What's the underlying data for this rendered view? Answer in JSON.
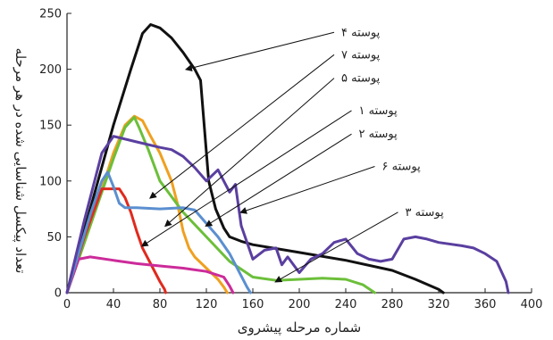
{
  "chart_data": {
    "type": "line",
    "xlabel": "شماره مرحله پیشروی",
    "ylabel": "تعداد پیکسل شناسایی شده در هر مرحله",
    "xlim": [
      0,
      400
    ],
    "ylim": [
      0,
      250
    ],
    "xticks": [
      "0",
      "40",
      "80",
      "120",
      "160",
      "200",
      "240",
      "280",
      "320",
      "360",
      "400"
    ],
    "yticks": [
      "0",
      "50",
      "100",
      "150",
      "200",
      "250"
    ],
    "grid": false,
    "series": [
      {
        "name": "پوسته ۴",
        "color": "#111111",
        "x": [
          0,
          20,
          40,
          55,
          65,
          72,
          80,
          90,
          100,
          110,
          115,
          122,
          128,
          135,
          140,
          150,
          160,
          200,
          240,
          280,
          300,
          320,
          324
        ],
        "y": [
          0,
          75,
          150,
          200,
          232,
          240,
          237,
          228,
          215,
          200,
          190,
          100,
          75,
          58,
          50,
          46,
          43,
          36,
          29,
          20,
          12,
          3,
          0
        ]
      },
      {
        "name": "پوسته ۷",
        "color": "#f0a020",
        "x": [
          0,
          20,
          40,
          50,
          58,
          65,
          72,
          80,
          90,
          95,
          100,
          105,
          110,
          120,
          130,
          135,
          138
        ],
        "y": [
          0,
          60,
          125,
          150,
          158,
          154,
          140,
          125,
          100,
          80,
          55,
          40,
          32,
          22,
          12,
          5,
          0
        ]
      },
      {
        "name": "پوسته ۵",
        "color": "#6cbf3a",
        "x": [
          0,
          20,
          40,
          50,
          58,
          62,
          70,
          80,
          100,
          120,
          140,
          160,
          180,
          200,
          220,
          240,
          255,
          265
        ],
        "y": [
          0,
          60,
          120,
          148,
          157,
          148,
          128,
          100,
          72,
          50,
          28,
          14,
          11,
          12,
          13,
          12,
          7,
          0
        ]
      },
      {
        "name": "پوسته ۱",
        "color": "#e02a1e",
        "x": [
          0,
          15,
          30,
          45,
          50,
          55,
          60,
          65,
          70,
          75,
          80,
          84,
          85
        ],
        "y": [
          0,
          50,
          93,
          93,
          85,
          72,
          55,
          40,
          30,
          20,
          10,
          3,
          0
        ]
      },
      {
        "name": "پوسته ۲",
        "color": "#cc2b9a",
        "x": [
          0,
          10,
          20,
          40,
          60,
          80,
          100,
          120,
          135,
          140,
          143
        ],
        "y": [
          0,
          30,
          32,
          29,
          26,
          24,
          22,
          19,
          14,
          6,
          0
        ]
      },
      {
        "name": "پوسته ۶",
        "color": "#5b8fd0",
        "x": [
          0,
          20,
          30,
          35,
          40,
          45,
          50,
          60,
          80,
          100,
          110,
          120,
          130,
          140,
          150,
          155,
          158
        ],
        "y": [
          0,
          70,
          100,
          108,
          95,
          80,
          76,
          76,
          75,
          76,
          74,
          62,
          50,
          35,
          15,
          5,
          0
        ]
      },
      {
        "name": "پوسته ۳",
        "color": "#5a3fa0",
        "x": [
          0,
          15,
          30,
          40,
          60,
          80,
          90,
          100,
          110,
          120,
          130,
          140,
          145,
          150,
          160,
          170,
          180,
          185,
          190,
          200,
          210,
          220,
          230,
          240,
          250,
          260,
          270,
          280,
          290,
          300,
          310,
          320,
          340,
          350,
          360,
          370,
          378,
          380
        ],
        "y": [
          0,
          65,
          125,
          140,
          135,
          130,
          128,
          122,
          112,
          100,
          110,
          90,
          97,
          60,
          30,
          38,
          40,
          25,
          32,
          18,
          30,
          35,
          45,
          48,
          35,
          30,
          28,
          30,
          48,
          50,
          48,
          45,
          42,
          40,
          35,
          28,
          10,
          0
        ]
      }
    ],
    "annotations": [
      {
        "label": "پوسته ۴",
        "tx": 230,
        "ty": 233,
        "ax": 103,
        "ay": 200
      },
      {
        "label": "پوسته ۷",
        "tx": 230,
        "ty": 213,
        "ax": 72,
        "ay": 85
      },
      {
        "label": "پوسته ۵",
        "tx": 230,
        "ty": 192,
        "ax": 85,
        "ay": 60
      },
      {
        "label": "پوسته ۱",
        "tx": 245,
        "ty": 163,
        "ax": 65,
        "ay": 42
      },
      {
        "label": "پوسته ۲",
        "tx": 245,
        "ty": 142,
        "ax": 120,
        "ay": 60
      },
      {
        "label": "پوسته ۶",
        "tx": 265,
        "ty": 113,
        "ax": 150,
        "ay": 72
      },
      {
        "label": "پوسته ۳",
        "tx": 285,
        "ty": 72,
        "ax": 180,
        "ay": 10
      }
    ]
  }
}
